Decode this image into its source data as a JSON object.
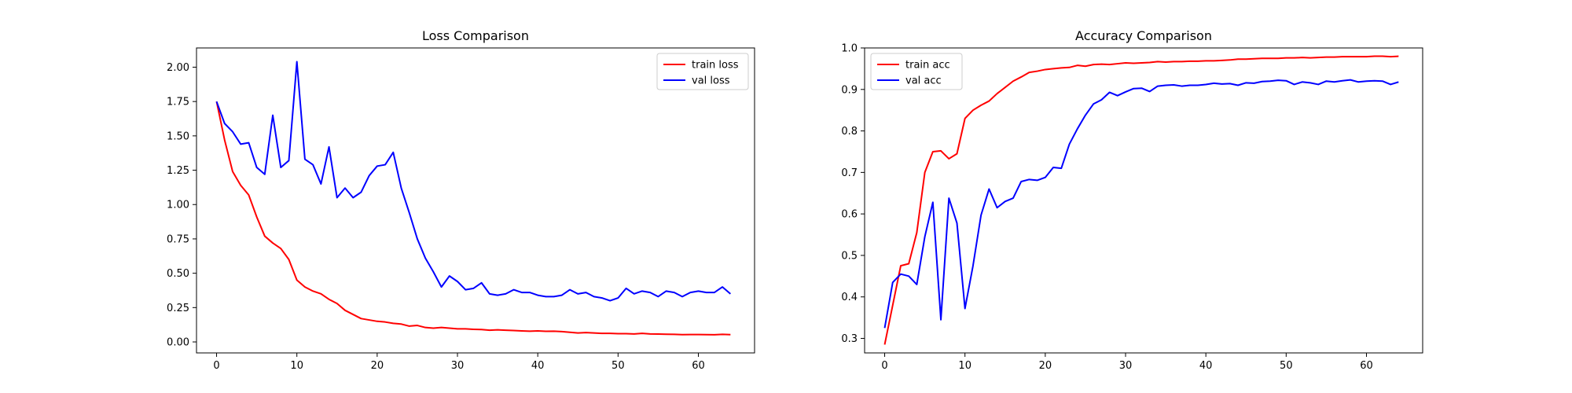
{
  "chart_data": [
    {
      "type": "line",
      "title": "Loss Comparison",
      "xlabel": "",
      "ylabel": "",
      "xlim": [
        -2.5,
        67
      ],
      "ylim": [
        -0.08,
        2.14
      ],
      "xticks": [
        0,
        10,
        20,
        30,
        40,
        50,
        60
      ],
      "xtick_labels": [
        "0",
        "10",
        "20",
        "30",
        "40",
        "50",
        "60"
      ],
      "yticks": [
        0.0,
        0.25,
        0.5,
        0.75,
        1.0,
        1.25,
        1.5,
        1.75,
        2.0
      ],
      "ytick_labels": [
        "0.00",
        "0.25",
        "0.50",
        "0.75",
        "1.00",
        "1.25",
        "1.50",
        "1.75",
        "2.00"
      ],
      "grid": false,
      "legend_position": "top-right",
      "x": [
        0,
        1,
        2,
        3,
        4,
        5,
        6,
        7,
        8,
        9,
        10,
        11,
        12,
        13,
        14,
        15,
        16,
        17,
        18,
        19,
        20,
        21,
        22,
        23,
        24,
        25,
        26,
        27,
        28,
        29,
        30,
        31,
        32,
        33,
        34,
        35,
        36,
        37,
        38,
        39,
        40,
        41,
        42,
        43,
        44,
        45,
        46,
        47,
        48,
        49,
        50,
        51,
        52,
        53,
        54,
        55,
        56,
        57,
        58,
        59,
        60,
        61,
        62,
        63,
        64
      ],
      "series": [
        {
          "name": "train loss",
          "color": "#ff0000",
          "values": [
            1.75,
            1.47,
            1.24,
            1.14,
            1.07,
            0.91,
            0.77,
            0.72,
            0.68,
            0.6,
            0.45,
            0.4,
            0.37,
            0.35,
            0.31,
            0.28,
            0.23,
            0.2,
            0.17,
            0.16,
            0.15,
            0.145,
            0.135,
            0.13,
            0.115,
            0.12,
            0.105,
            0.1,
            0.105,
            0.1,
            0.095,
            0.095,
            0.092,
            0.09,
            0.085,
            0.088,
            0.085,
            0.083,
            0.08,
            0.078,
            0.08,
            0.077,
            0.078,
            0.075,
            0.07,
            0.065,
            0.068,
            0.065,
            0.062,
            0.062,
            0.06,
            0.06,
            0.058,
            0.062,
            0.058,
            0.057,
            0.056,
            0.055,
            0.053,
            0.054,
            0.054,
            0.053,
            0.052,
            0.055,
            0.053
          ]
        },
        {
          "name": "val loss",
          "color": "#0000ff",
          "values": [
            1.75,
            1.59,
            1.53,
            1.44,
            1.45,
            1.27,
            1.22,
            1.65,
            1.27,
            1.32,
            2.04,
            1.33,
            1.29,
            1.15,
            1.42,
            1.05,
            1.12,
            1.05,
            1.09,
            1.21,
            1.28,
            1.29,
            1.38,
            1.12,
            0.94,
            0.75,
            0.61,
            0.51,
            0.4,
            0.48,
            0.44,
            0.38,
            0.39,
            0.43,
            0.35,
            0.34,
            0.35,
            0.38,
            0.36,
            0.36,
            0.34,
            0.33,
            0.33,
            0.34,
            0.38,
            0.35,
            0.36,
            0.33,
            0.32,
            0.3,
            0.32,
            0.39,
            0.35,
            0.37,
            0.36,
            0.33,
            0.37,
            0.36,
            0.33,
            0.36,
            0.37,
            0.36,
            0.36,
            0.4,
            0.35
          ]
        }
      ]
    },
    {
      "type": "line",
      "title": "Accuracy Comparison",
      "xlabel": "",
      "ylabel": "",
      "xlim": [
        -2.5,
        67
      ],
      "ylim": [
        0.265,
        1.0
      ],
      "xticks": [
        0,
        10,
        20,
        30,
        40,
        50,
        60
      ],
      "xtick_labels": [
        "0",
        "10",
        "20",
        "30",
        "40",
        "50",
        "60"
      ],
      "yticks": [
        0.3,
        0.4,
        0.5,
        0.6,
        0.7,
        0.8,
        0.9,
        1.0
      ],
      "ytick_labels": [
        "0.3",
        "0.4",
        "0.5",
        "0.6",
        "0.7",
        "0.8",
        "0.9",
        "1.0"
      ],
      "grid": false,
      "legend_position": "top-left",
      "x": [
        0,
        1,
        2,
        3,
        4,
        5,
        6,
        7,
        8,
        9,
        10,
        11,
        12,
        13,
        14,
        15,
        16,
        17,
        18,
        19,
        20,
        21,
        22,
        23,
        24,
        25,
        26,
        27,
        28,
        29,
        30,
        31,
        32,
        33,
        34,
        35,
        36,
        37,
        38,
        39,
        40,
        41,
        42,
        43,
        44,
        45,
        46,
        47,
        48,
        49,
        50,
        51,
        52,
        53,
        54,
        55,
        56,
        57,
        58,
        59,
        60,
        61,
        62,
        63,
        64
      ],
      "series": [
        {
          "name": "train acc",
          "color": "#ff0000",
          "values": [
            0.285,
            0.38,
            0.475,
            0.48,
            0.555,
            0.7,
            0.75,
            0.752,
            0.733,
            0.745,
            0.83,
            0.85,
            0.862,
            0.872,
            0.89,
            0.905,
            0.92,
            0.93,
            0.941,
            0.944,
            0.948,
            0.95,
            0.952,
            0.953,
            0.958,
            0.956,
            0.96,
            0.961,
            0.96,
            0.962,
            0.964,
            0.963,
            0.964,
            0.965,
            0.967,
            0.966,
            0.967,
            0.967,
            0.968,
            0.968,
            0.969,
            0.969,
            0.97,
            0.971,
            0.973,
            0.973,
            0.974,
            0.975,
            0.975,
            0.975,
            0.976,
            0.976,
            0.977,
            0.976,
            0.977,
            0.978,
            0.978,
            0.979,
            0.979,
            0.979,
            0.979,
            0.98,
            0.98,
            0.979,
            0.98
          ]
        },
        {
          "name": "val acc",
          "color": "#0000ff",
          "values": [
            0.325,
            0.435,
            0.455,
            0.45,
            0.43,
            0.545,
            0.628,
            0.345,
            0.638,
            0.578,
            0.372,
            0.475,
            0.597,
            0.66,
            0.615,
            0.63,
            0.638,
            0.678,
            0.683,
            0.681,
            0.688,
            0.712,
            0.71,
            0.768,
            0.805,
            0.838,
            0.865,
            0.875,
            0.893,
            0.885,
            0.894,
            0.902,
            0.903,
            0.895,
            0.908,
            0.91,
            0.911,
            0.908,
            0.91,
            0.91,
            0.912,
            0.915,
            0.913,
            0.914,
            0.91,
            0.916,
            0.915,
            0.919,
            0.92,
            0.922,
            0.921,
            0.912,
            0.918,
            0.916,
            0.912,
            0.92,
            0.918,
            0.921,
            0.923,
            0.918,
            0.92,
            0.921,
            0.92,
            0.912,
            0.918
          ]
        }
      ]
    }
  ]
}
